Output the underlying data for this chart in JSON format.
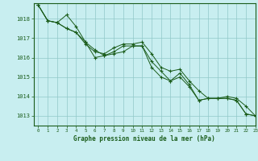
{
  "title": "Graphe pression niveau de la mer (hPa)",
  "background_color": "#c8eef0",
  "grid_color": "#90c8c8",
  "line_color": "#1a5c1a",
  "xlim": [
    -0.5,
    23
  ],
  "ylim": [
    1012.5,
    1018.8
  ],
  "yticks": [
    1013,
    1014,
    1015,
    1016,
    1017,
    1018
  ],
  "xticks": [
    0,
    1,
    2,
    3,
    4,
    5,
    6,
    7,
    8,
    9,
    10,
    11,
    12,
    13,
    14,
    15,
    16,
    17,
    18,
    19,
    20,
    21,
    22,
    23
  ],
  "series": [
    [
      1018.7,
      1017.9,
      1017.8,
      1018.2,
      1017.6,
      1016.8,
      1016.0,
      1016.1,
      1016.2,
      1016.3,
      1016.6,
      1016.6,
      1015.5,
      1015.0,
      1014.8,
      1015.2,
      1014.6,
      1013.8,
      1013.9,
      1013.9,
      1013.9,
      1013.8,
      1013.1,
      1013.0
    ],
    [
      1018.7,
      1017.9,
      1017.8,
      1017.5,
      1017.3,
      1016.8,
      1016.4,
      1016.1,
      1016.3,
      1016.6,
      1016.6,
      1016.6,
      1015.8,
      1015.3,
      1014.8,
      1015.0,
      1014.5,
      1013.8,
      1013.9,
      1013.9,
      1013.9,
      1013.8,
      1013.1,
      1013.0
    ],
    [
      1018.7,
      1017.9,
      1017.8,
      1017.5,
      1017.3,
      1016.7,
      1016.3,
      1016.2,
      1016.5,
      1016.7,
      1016.7,
      1016.8,
      1016.2,
      1015.5,
      1015.3,
      1015.4,
      1014.8,
      1014.3,
      1013.9,
      1013.9,
      1014.0,
      1013.9,
      1013.5,
      1013.0
    ]
  ]
}
